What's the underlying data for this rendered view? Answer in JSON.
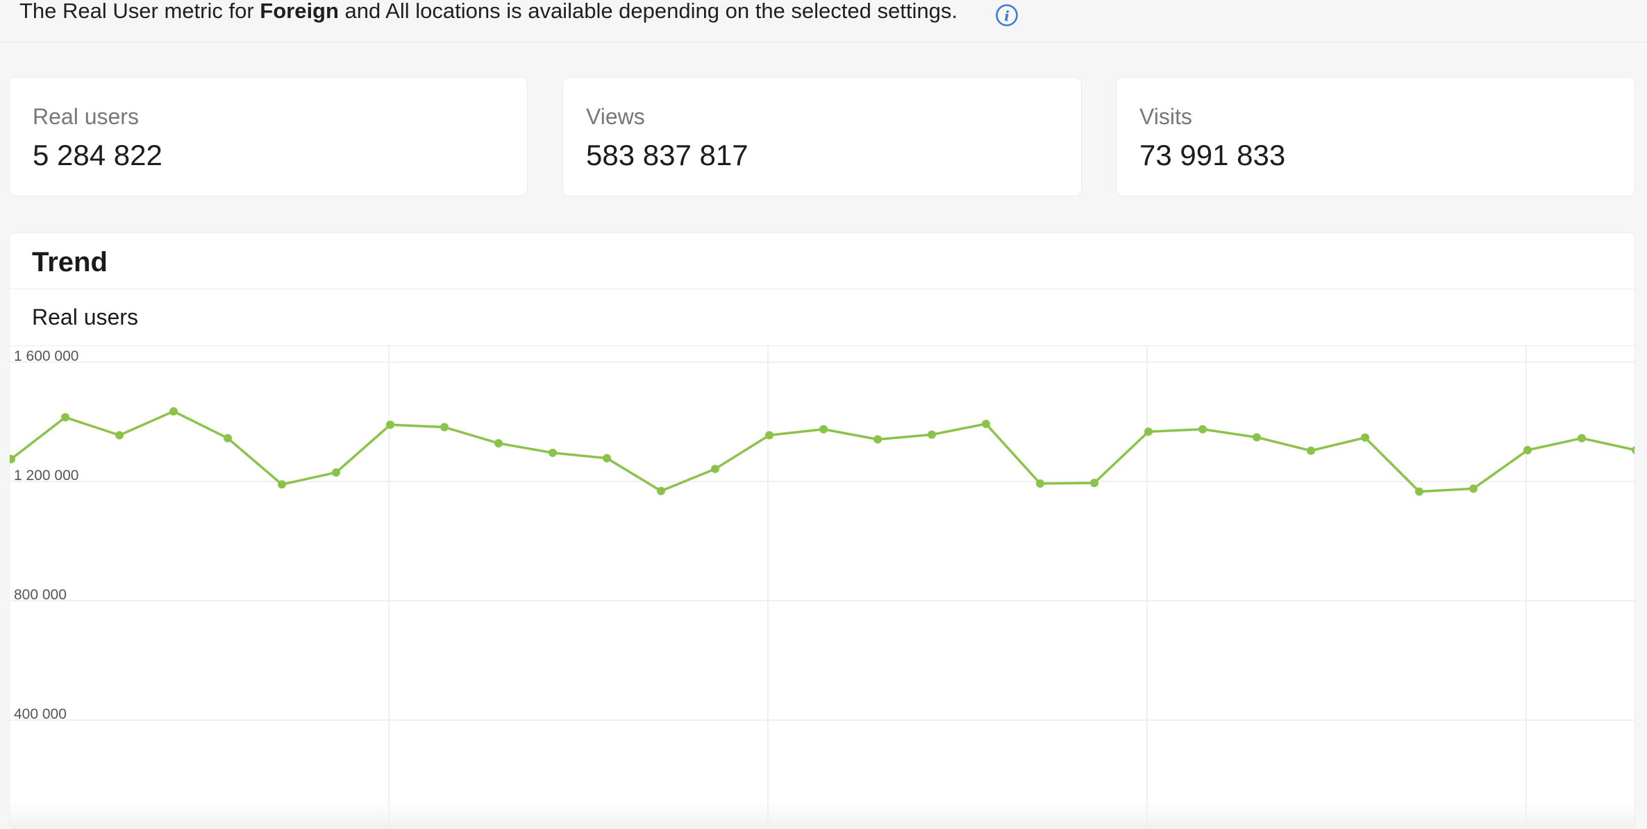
{
  "notice": {
    "prefix": "The Real User metric for ",
    "bold": "Foreign",
    "suffix": " and All locations is available depending on the selected settings."
  },
  "cards": [
    {
      "label": "Real users",
      "value": "5 284 822"
    },
    {
      "label": "Views",
      "value": "583 837 817"
    },
    {
      "label": "Visits",
      "value": "73 991 833"
    }
  ],
  "trend": {
    "title": "Trend",
    "metric_label": "Real users"
  },
  "colors": {
    "series": "#8bc34a",
    "info_icon": "#3a7bd5"
  },
  "chart_data": {
    "type": "line",
    "title": "",
    "xlabel": "",
    "ylabel": "",
    "ylim": [
      0,
      1600000
    ],
    "yticks": [
      1600000,
      1200000,
      800000,
      400000
    ],
    "ytick_labels": [
      "1 600 000",
      "1 200 000",
      "800 000",
      "400 000"
    ],
    "grid": true,
    "series": [
      {
        "values": [
          1275000,
          1415000,
          1355000,
          1435000,
          1345000,
          1190000,
          1230000,
          1390000,
          1382000,
          1328000,
          1296000,
          1278000,
          1168000,
          1242000,
          1355000,
          1375000,
          1341000,
          1357000,
          1393000,
          1193000,
          1195000,
          1367000,
          1375000,
          1348000,
          1303000,
          1347000,
          1166000,
          1176000,
          1305000,
          1345000,
          1305000
        ]
      }
    ]
  }
}
